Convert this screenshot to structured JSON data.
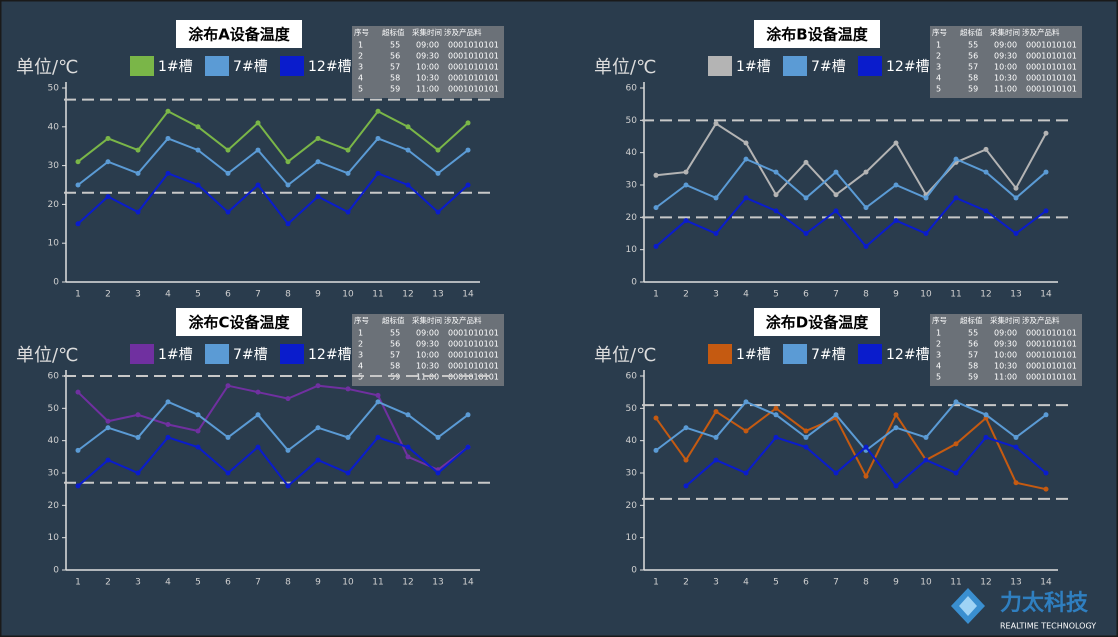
{
  "chart_data": [
    {
      "type": "line",
      "title": "涂布A设备温度",
      "y_label": "单位/℃",
      "categories": [
        "1",
        "2",
        "3",
        "4",
        "5",
        "6",
        "7",
        "8",
        "9",
        "10",
        "11",
        "12",
        "13",
        "14"
      ],
      "series": [
        {
          "name": "1#槽",
          "color": "#7ab648",
          "values": [
            31,
            37,
            34,
            44,
            40,
            34,
            41,
            31,
            37,
            34,
            44,
            40,
            34,
            41
          ]
        },
        {
          "name": "7#槽",
          "color": "#5b9bd5",
          "values": [
            25,
            31,
            28,
            37,
            34,
            28,
            34,
            25,
            31,
            28,
            37,
            34,
            28,
            34
          ]
        },
        {
          "name": "12#槽",
          "color": "#0a1ccc",
          "values": [
            15,
            22,
            18,
            28,
            25,
            18,
            25,
            15,
            22,
            18,
            28,
            25,
            18,
            25
          ]
        }
      ],
      "ylim": [
        0,
        50
      ],
      "yticks": [
        0,
        10,
        20,
        30,
        40,
        50
      ],
      "limits": [
        47,
        23
      ],
      "table": {
        "columns": [
          "序号",
          "超标值",
          "采集时间",
          "涉及产品料"
        ],
        "rows": [
          [
            "1",
            "55",
            "09:00",
            "0001010101"
          ],
          [
            "2",
            "56",
            "09:30",
            "0001010101"
          ],
          [
            "3",
            "57",
            "10:00",
            "0001010101"
          ],
          [
            "4",
            "58",
            "10:30",
            "0001010101"
          ],
          [
            "5",
            "59",
            "11:00",
            "0001010101"
          ]
        ]
      }
    },
    {
      "type": "line",
      "title": "涂布B设备温度",
      "y_label": "单位/℃",
      "categories": [
        "1",
        "2",
        "3",
        "4",
        "5",
        "6",
        "7",
        "8",
        "9",
        "10",
        "11",
        "12",
        "13",
        "14"
      ],
      "series": [
        {
          "name": "1#槽",
          "color": "#b4b4b4",
          "values": [
            33,
            34,
            49,
            43,
            27,
            37,
            27,
            34,
            43,
            27,
            37,
            41,
            29,
            46
          ]
        },
        {
          "name": "7#槽",
          "color": "#5b9bd5",
          "values": [
            23,
            30,
            26,
            38,
            34,
            26,
            34,
            23,
            30,
            26,
            38,
            34,
            26,
            34
          ]
        },
        {
          "name": "12#槽",
          "color": "#0a1ccc",
          "values": [
            11,
            19,
            15,
            26,
            22,
            15,
            22,
            11,
            19,
            15,
            26,
            22,
            15,
            22
          ]
        }
      ],
      "ylim": [
        0,
        60
      ],
      "yticks": [
        0,
        10,
        20,
        30,
        40,
        50,
        60
      ],
      "limits": [
        50,
        20
      ],
      "table": {
        "columns": [
          "序号",
          "超标值",
          "采集时间",
          "涉及产品料"
        ],
        "rows": [
          [
            "1",
            "55",
            "09:00",
            "0001010101"
          ],
          [
            "2",
            "56",
            "09:30",
            "0001010101"
          ],
          [
            "3",
            "57",
            "10:00",
            "0001010101"
          ],
          [
            "4",
            "58",
            "10:30",
            "0001010101"
          ],
          [
            "5",
            "59",
            "11:00",
            "0001010101"
          ]
        ]
      }
    },
    {
      "type": "line",
      "title": "涂布C设备温度",
      "y_label": "单位/℃",
      "categories": [
        "1",
        "2",
        "3",
        "4",
        "5",
        "6",
        "7",
        "8",
        "9",
        "10",
        "11",
        "12",
        "13",
        "14"
      ],
      "series": [
        {
          "name": "1#槽",
          "color": "#7030a0",
          "values": [
            55,
            46,
            48,
            45,
            43,
            57,
            55,
            53,
            57,
            56,
            54,
            35,
            31,
            38
          ]
        },
        {
          "name": "7#槽",
          "color": "#5b9bd5",
          "values": [
            37,
            44,
            41,
            52,
            48,
            41,
            48,
            37,
            44,
            41,
            52,
            48,
            41,
            48
          ]
        },
        {
          "name": "12#槽",
          "color": "#0a1ccc",
          "values": [
            26,
            34,
            30,
            41,
            38,
            30,
            38,
            26,
            34,
            30,
            41,
            38,
            30,
            38
          ]
        }
      ],
      "ylim": [
        0,
        60
      ],
      "yticks": [
        0,
        10,
        20,
        30,
        40,
        50,
        60
      ],
      "limits": [
        60,
        27
      ],
      "table": {
        "columns": [
          "序号",
          "超标值",
          "采集时间",
          "涉及产品料"
        ],
        "rows": [
          [
            "1",
            "55",
            "09:00",
            "0001010101"
          ],
          [
            "2",
            "56",
            "09:30",
            "0001010101"
          ],
          [
            "3",
            "57",
            "10:00",
            "0001010101"
          ],
          [
            "4",
            "58",
            "10:30",
            "0001010101"
          ],
          [
            "5",
            "59",
            "11:00",
            "0001010101"
          ]
        ]
      }
    },
    {
      "type": "line",
      "title": "涂布D设备温度",
      "y_label": "单位/℃",
      "categories": [
        "1",
        "2",
        "3",
        "4",
        "5",
        "6",
        "7",
        "8",
        "9",
        "10",
        "11",
        "12",
        "13",
        "14"
      ],
      "series": [
        {
          "name": "1#槽",
          "color": "#c55a11",
          "values": [
            47,
            34,
            49,
            43,
            50,
            43,
            47,
            29,
            48,
            34,
            39,
            47,
            27,
            25
          ]
        },
        {
          "name": "7#槽",
          "color": "#5b9bd5",
          "values": [
            37,
            44,
            41,
            52,
            48,
            41,
            48,
            37,
            44,
            41,
            52,
            48,
            41,
            48
          ]
        },
        {
          "name": "12#槽",
          "color": "#0a1ccc",
          "values": [
            null,
            26,
            34,
            30,
            41,
            38,
            30,
            38,
            26,
            34,
            30,
            41,
            38,
            30
          ]
        }
      ],
      "ylim": [
        0,
        60
      ],
      "yticks": [
        0,
        10,
        20,
        30,
        40,
        50,
        60
      ],
      "limits": [
        51,
        22
      ],
      "table": {
        "columns": [
          "序号",
          "超标值",
          "采集时间",
          "涉及产品料"
        ],
        "rows": [
          [
            "1",
            "55",
            "09:00",
            "0001010101"
          ],
          [
            "2",
            "56",
            "09:30",
            "0001010101"
          ],
          [
            "3",
            "57",
            "10:00",
            "0001010101"
          ],
          [
            "4",
            "58",
            "10:30",
            "0001010101"
          ],
          [
            "5",
            "59",
            "11:00",
            "0001010101"
          ]
        ]
      }
    }
  ],
  "logo": {
    "name": "力太科技",
    "tagline": "REALTIME TECHNOLOGY"
  }
}
